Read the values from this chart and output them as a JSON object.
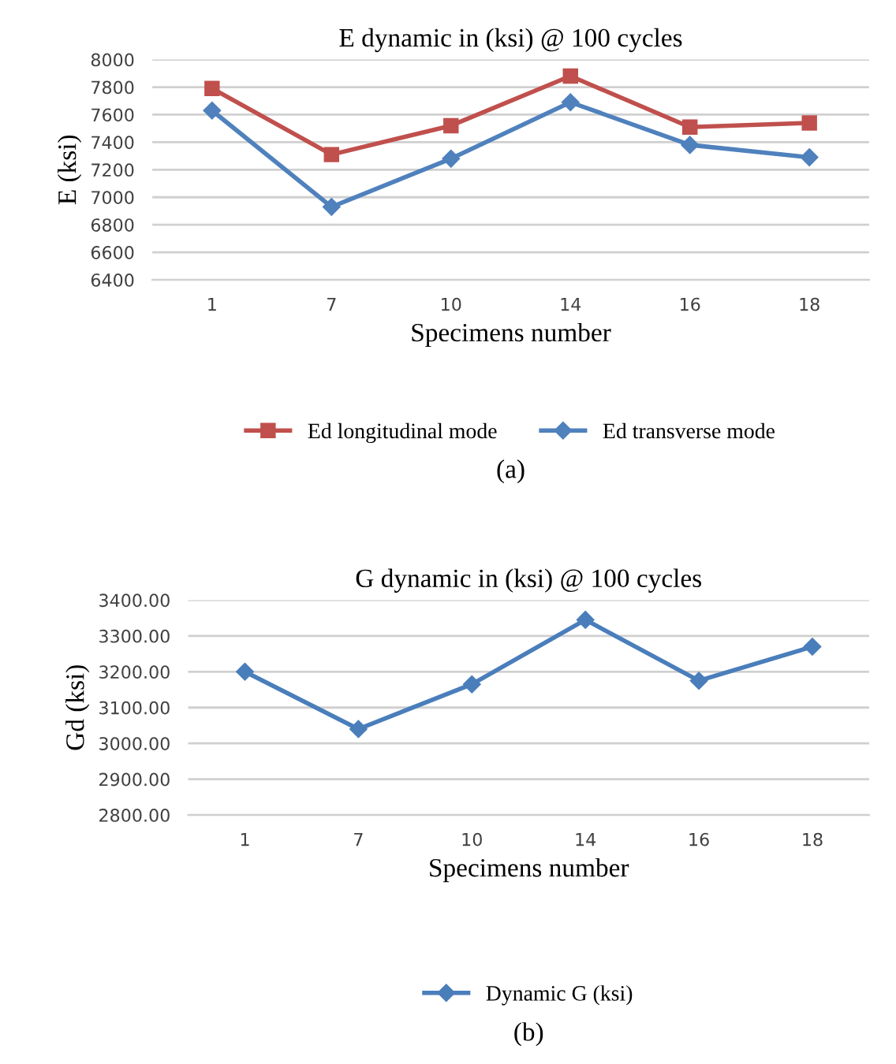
{
  "chart_data": [
    {
      "type": "line",
      "title": "E dynamic in (ksi) @ 100 cycles",
      "xlabel": "Specimens number",
      "ylabel": "E (ksi)",
      "categories": [
        "1",
        "7",
        "10",
        "14",
        "16",
        "18"
      ],
      "series": [
        {
          "name": "Ed longitudinal mode",
          "color": "#c0504d",
          "marker": "square",
          "values": [
            7790,
            7310,
            7520,
            7880,
            7510,
            7540
          ]
        },
        {
          "name": "Ed transverse mode",
          "color": "#4f81bd",
          "marker": "diamond",
          "values": [
            7630,
            6930,
            7280,
            7690,
            7380,
            7290
          ]
        }
      ],
      "ylim": [
        6400,
        8000
      ],
      "yticks": [
        6400,
        6600,
        6800,
        7000,
        7200,
        7400,
        7600,
        7800,
        8000
      ],
      "grid": "y",
      "legend": "bottom",
      "line_style": "solid",
      "annotations": [
        "(a)"
      ]
    },
    {
      "type": "line",
      "title": "G dynamic in (ksi) @ 100 cycles",
      "xlabel": "Specimens number",
      "ylabel": "Gd (ksi)",
      "categories": [
        "1",
        "7",
        "10",
        "14",
        "16",
        "18"
      ],
      "series": [
        {
          "name": "Dynamic G (ksi)",
          "color": "#4a7ebb",
          "marker": "diamond",
          "values": [
            3200,
            3040,
            3165,
            3345,
            3175,
            3270
          ]
        }
      ],
      "ylim": [
        2800,
        3400
      ],
      "yticks": [
        {
          "value": 2800,
          "label": "2800.00"
        },
        {
          "value": 2900,
          "label": "2900.00"
        },
        {
          "value": 3000,
          "label": "3000.00"
        },
        {
          "value": 3100,
          "label": "3100.00"
        },
        {
          "value": 3200,
          "label": "3200.00"
        },
        {
          "value": 3300,
          "label": "3300.00"
        },
        {
          "value": 3400,
          "label": "3400.00"
        }
      ],
      "grid": "y",
      "legend": "bottom",
      "line_style": "solid",
      "annotations": [
        "(b)"
      ]
    }
  ]
}
